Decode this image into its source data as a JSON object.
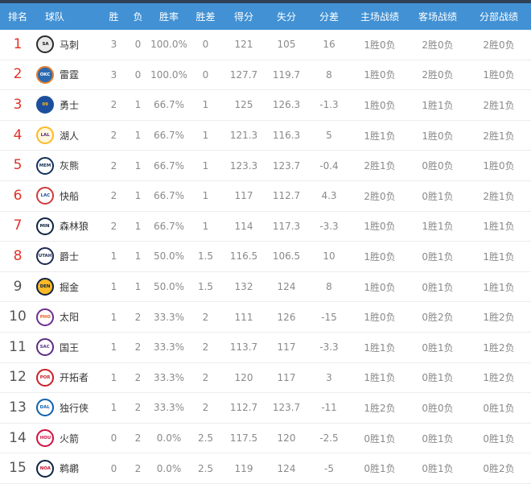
{
  "page": {
    "header_bg": "#4191d4",
    "top_strip": "#2e4156",
    "rank_red": "#e03228",
    "rank_gray": "#555555"
  },
  "table": {
    "columns": [
      "排名",
      "球队",
      "胜",
      "负",
      "胜率",
      "胜差",
      "得分",
      "失分",
      "分差",
      "主场战绩",
      "客场战绩",
      "分部战绩"
    ],
    "rows": [
      {
        "rank": "1",
        "rank_color": "#e03228",
        "team": {
          "name": "马刺",
          "abbr": "SA",
          "ring": "#2b2b2b",
          "bg": "#e9e9e9",
          "fg": "#111111"
        },
        "wins": "3",
        "losses": "0",
        "pct": "100.0%",
        "gb": "0",
        "pf": "121",
        "pa": "105",
        "diff": "16",
        "home": "1胜0负",
        "away": "2胜0负",
        "division": "2胜0负"
      },
      {
        "rank": "2",
        "rank_color": "#e03228",
        "team": {
          "name": "雷霆",
          "abbr": "OKC",
          "ring": "#e87c2a",
          "bg": "#2b6bb1",
          "fg": "#ffffff"
        },
        "wins": "3",
        "losses": "0",
        "pct": "100.0%",
        "gb": "0",
        "pf": "127.7",
        "pa": "119.7",
        "diff": "8",
        "home": "1胜0负",
        "away": "2胜0负",
        "division": "1胜0负"
      },
      {
        "rank": "3",
        "rank_color": "#e03228",
        "team": {
          "name": "勇士",
          "abbr": "09",
          "ring": "#1d4f9c",
          "bg": "#1d4f9c",
          "fg": "#fdb927"
        },
        "wins": "2",
        "losses": "1",
        "pct": "66.7%",
        "gb": "1",
        "pf": "125",
        "pa": "126.3",
        "diff": "-1.3",
        "home": "1胜0负",
        "away": "1胜1负",
        "division": "2胜1负"
      },
      {
        "rank": "4",
        "rank_color": "#e03228",
        "team": {
          "name": "湖人",
          "abbr": "LAL",
          "ring": "#fdb927",
          "bg": "#fff6dd",
          "fg": "#552583"
        },
        "wins": "2",
        "losses": "1",
        "pct": "66.7%",
        "gb": "1",
        "pf": "121.3",
        "pa": "116.3",
        "diff": "5",
        "home": "1胜1负",
        "away": "1胜0负",
        "division": "2胜1负"
      },
      {
        "rank": "5",
        "rank_color": "#e03228",
        "team": {
          "name": "灰熊",
          "abbr": "MEM",
          "ring": "#12305b",
          "bg": "#ffffff",
          "fg": "#12305b"
        },
        "wins": "2",
        "losses": "1",
        "pct": "66.7%",
        "gb": "1",
        "pf": "123.3",
        "pa": "123.7",
        "diff": "-0.4",
        "home": "2胜1负",
        "away": "0胜0负",
        "division": "1胜0负"
      },
      {
        "rank": "6",
        "rank_color": "#e03228",
        "team": {
          "name": "快船",
          "abbr": "LAC",
          "ring": "#d13b3b",
          "bg": "#ffffff",
          "fg": "#1d4f9c"
        },
        "wins": "2",
        "losses": "1",
        "pct": "66.7%",
        "gb": "1",
        "pf": "117",
        "pa": "112.7",
        "diff": "4.3",
        "home": "2胜0负",
        "away": "0胜1负",
        "division": "2胜1负"
      },
      {
        "rank": "7",
        "rank_color": "#e03228",
        "team": {
          "name": "森林狼",
          "abbr": "MIN",
          "ring": "#0c2340",
          "bg": "#ffffff",
          "fg": "#0c2340"
        },
        "wins": "2",
        "losses": "1",
        "pct": "66.7%",
        "gb": "1",
        "pf": "114",
        "pa": "117.3",
        "diff": "-3.3",
        "home": "1胜0负",
        "away": "1胜1负",
        "division": "1胜1负"
      },
      {
        "rank": "8",
        "rank_color": "#e03228",
        "team": {
          "name": "爵士",
          "abbr": "UTAH",
          "ring": "#1d2951",
          "bg": "#ffffff",
          "fg": "#1d2951"
        },
        "wins": "1",
        "losses": "1",
        "pct": "50.0%",
        "gb": "1.5",
        "pf": "116.5",
        "pa": "106.5",
        "diff": "10",
        "home": "1胜0负",
        "away": "0胜1负",
        "division": "1胜1负"
      },
      {
        "rank": "9",
        "rank_color": "#555555",
        "team": {
          "name": "掘金",
          "abbr": "DEN",
          "ring": "#0e2240",
          "bg": "#fdb927",
          "fg": "#0e2240"
        },
        "wins": "1",
        "losses": "1",
        "pct": "50.0%",
        "gb": "1.5",
        "pf": "132",
        "pa": "124",
        "diff": "8",
        "home": "1胜0负",
        "away": "0胜1负",
        "division": "1胜1负"
      },
      {
        "rank": "10",
        "rank_color": "#555555",
        "team": {
          "name": "太阳",
          "abbr": "PHO",
          "ring": "#6a2d91",
          "bg": "#ffffff",
          "fg": "#e56020"
        },
        "wins": "1",
        "losses": "2",
        "pct": "33.3%",
        "gb": "2",
        "pf": "111",
        "pa": "126",
        "diff": "-15",
        "home": "1胜0负",
        "away": "0胜2负",
        "division": "1胜2负"
      },
      {
        "rank": "11",
        "rank_color": "#555555",
        "team": {
          "name": "国王",
          "abbr": "SAC",
          "ring": "#5a2d81",
          "bg": "#ffffff",
          "fg": "#5a2d81"
        },
        "wins": "1",
        "losses": "2",
        "pct": "33.3%",
        "gb": "2",
        "pf": "113.7",
        "pa": "117",
        "diff": "-3.3",
        "home": "1胜1负",
        "away": "0胜1负",
        "division": "1胜2负"
      },
      {
        "rank": "12",
        "rank_color": "#555555",
        "team": {
          "name": "开拓者",
          "abbr": "POR",
          "ring": "#ca2026",
          "bg": "#ffffff",
          "fg": "#ca2026"
        },
        "wins": "1",
        "losses": "2",
        "pct": "33.3%",
        "gb": "2",
        "pf": "120",
        "pa": "117",
        "diff": "3",
        "home": "1胜1负",
        "away": "0胜1负",
        "division": "1胜2负"
      },
      {
        "rank": "13",
        "rank_color": "#555555",
        "team": {
          "name": "独行侠",
          "abbr": "DAL",
          "ring": "#1061ac",
          "bg": "#ffffff",
          "fg": "#1061ac"
        },
        "wins": "1",
        "losses": "2",
        "pct": "33.3%",
        "gb": "2",
        "pf": "112.7",
        "pa": "123.7",
        "diff": "-11",
        "home": "1胜2负",
        "away": "0胜0负",
        "division": "0胜1负"
      },
      {
        "rank": "14",
        "rank_color": "#555555",
        "team": {
          "name": "火箭",
          "abbr": "HOU",
          "ring": "#ce1141",
          "bg": "#ffffff",
          "fg": "#ce1141"
        },
        "wins": "0",
        "losses": "2",
        "pct": "0.0%",
        "gb": "2.5",
        "pf": "117.5",
        "pa": "120",
        "diff": "-2.5",
        "home": "0胜1负",
        "away": "0胜1负",
        "division": "0胜1负"
      },
      {
        "rank": "15",
        "rank_color": "#555555",
        "team": {
          "name": "鹈鹕",
          "abbr": "NOA",
          "ring": "#0c2340",
          "bg": "#ffffff",
          "fg": "#c8102e"
        },
        "wins": "0",
        "losses": "2",
        "pct": "0.0%",
        "gb": "2.5",
        "pf": "119",
        "pa": "124",
        "diff": "-5",
        "home": "0胜1负",
        "away": "0胜1负",
        "division": "0胜2负"
      }
    ]
  }
}
